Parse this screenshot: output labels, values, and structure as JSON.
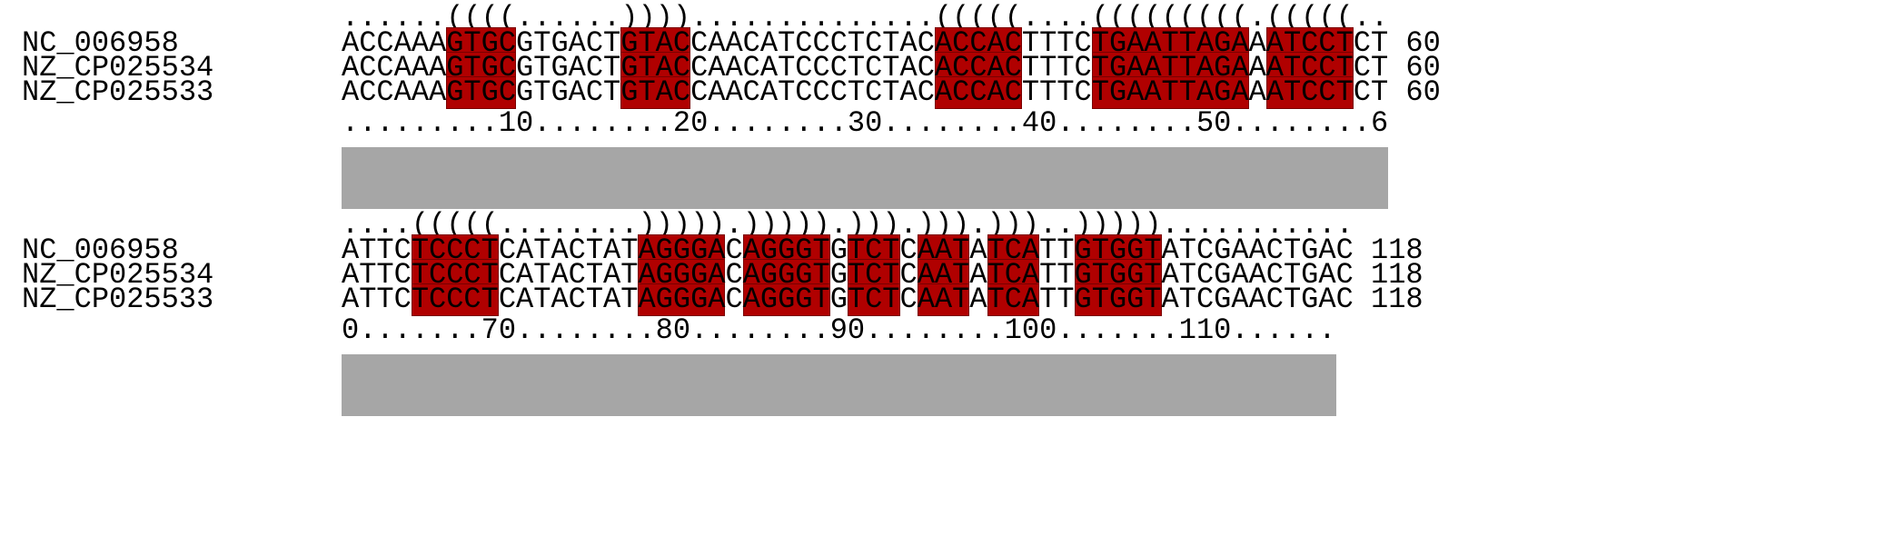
{
  "highlight_color": "#b00000",
  "conservation_color": "#a6a6a6",
  "blocks": [
    {
      "structure": "......((((......))))..............(((((....(((((((((.(((((..",
      "rows": [
        {
          "name": "NC_006958",
          "sequence": "ACCAAAGTGCGTGACTGTACCAACATCCCTCTACACCACTTTCTGAATTAGAAATCCTCT",
          "end": "60"
        },
        {
          "name": "NZ_CP025534",
          "sequence": "ACCAAAGTGCGTGACTGTACCAACATCCCTCTACACCACTTTCTGAATTAGAAATCCTCT",
          "end": "60"
        },
        {
          "name": "NZ_CP025533",
          "sequence": "ACCAAAGTGCGTGACTGTACCAACATCCCTCTACACCACTTTCTGAATTAGAAATCCTCT",
          "end": "60"
        }
      ],
      "ruler": ".........10........20........30........40........50........6",
      "highlight_ranges": [
        [
          6,
          9
        ],
        [
          16,
          19
        ],
        [
          34,
          38
        ],
        [
          43,
          51
        ],
        [
          53,
          57
        ]
      ]
    },
    {
      "structure": "....(((((........))))).))))).))).))).)))..)))))...........",
      "rows": [
        {
          "name": "NC_006958",
          "sequence": "ATTCTCCCTCATACTATAGGGACAGGGTGTCTCAATATCATTGTGGTATCGAACTGAC",
          "end": "118"
        },
        {
          "name": "NZ_CP025534",
          "sequence": "ATTCTCCCTCATACTATAGGGACAGGGTGTCTCAATATCATTGTGGTATCGAACTGAC",
          "end": "118"
        },
        {
          "name": "NZ_CP025533",
          "sequence": "ATTCTCCCTCATACTATAGGGACAGGGTGTCTCAATATCATTGTGGTATCGAACTGAC",
          "end": "118"
        }
      ],
      "ruler": "0.......70........80........90........100.......110......",
      "highlight_ranges": [
        [
          4,
          8
        ],
        [
          17,
          21
        ],
        [
          23,
          27
        ],
        [
          29,
          31
        ],
        [
          33,
          35
        ],
        [
          37,
          39
        ],
        [
          42,
          46
        ]
      ]
    }
  ]
}
